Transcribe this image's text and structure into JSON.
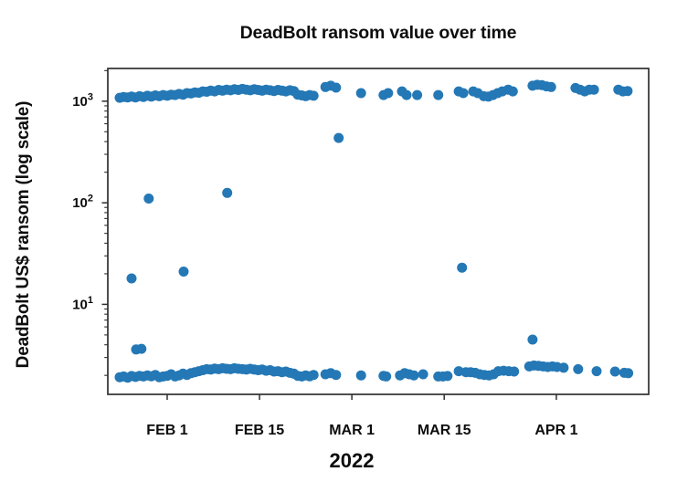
{
  "title": "DeadBolt ransom value over time",
  "y_axis_label": "DeadBolt US$ ransom (log scale)",
  "x_axis_label": "2022",
  "colors": {
    "marker": "#2478b5",
    "axis": "#2f2f2f",
    "text": "#0d0d0d",
    "background": "#ffffff"
  },
  "chart_data": {
    "type": "scatter",
    "title": "DeadBolt ransom value over time",
    "xlabel": "2022",
    "ylabel": "DeadBolt US$ ransom (log scale)",
    "x_unit": "day of year 2022 (Jan 1 = 1)",
    "y_unit": "US$ (log scale)",
    "xlim_days": [
      23,
      105
    ],
    "ylim": [
      1.3,
      2100
    ],
    "y_scale": "log10",
    "grid": false,
    "legend": "none",
    "marker_size_px": 11,
    "x_ticks": [
      {
        "day": 32,
        "label": "FEB 1"
      },
      {
        "day": 46,
        "label": "FEB 15"
      },
      {
        "day": 60,
        "label": "MAR 1"
      },
      {
        "day": 74,
        "label": "MAR 15"
      },
      {
        "day": 91,
        "label": "APR 1"
      }
    ],
    "y_ticks": [
      {
        "value": 1000,
        "base": "10",
        "exp": "3"
      },
      {
        "value": 100,
        "base": "10",
        "exp": "2"
      },
      {
        "value": 10,
        "base": "10",
        "exp": "1"
      }
    ],
    "points": [
      [
        24.8,
        1080
      ],
      [
        25.4,
        1100
      ],
      [
        26.0,
        1090
      ],
      [
        26.6,
        1110
      ],
      [
        27.2,
        1090
      ],
      [
        27.8,
        1120
      ],
      [
        28.4,
        1100
      ],
      [
        29.0,
        1130
      ],
      [
        29.6,
        1110
      ],
      [
        30.2,
        1140
      ],
      [
        30.8,
        1120
      ],
      [
        31.4,
        1150
      ],
      [
        32.0,
        1130
      ],
      [
        32.6,
        1160
      ],
      [
        33.2,
        1150
      ],
      [
        33.8,
        1180
      ],
      [
        34.4,
        1160
      ],
      [
        35.0,
        1200
      ],
      [
        35.6,
        1190
      ],
      [
        36.2,
        1220
      ],
      [
        36.8,
        1210
      ],
      [
        37.4,
        1250
      ],
      [
        38.0,
        1240
      ],
      [
        38.6,
        1270
      ],
      [
        39.2,
        1250
      ],
      [
        39.8,
        1290
      ],
      [
        40.4,
        1270
      ],
      [
        41.0,
        1300
      ],
      [
        41.6,
        1280
      ],
      [
        42.2,
        1310
      ],
      [
        42.8,
        1290
      ],
      [
        43.4,
        1320
      ],
      [
        44.0,
        1300
      ],
      [
        44.6,
        1280
      ],
      [
        45.2,
        1310
      ],
      [
        45.8,
        1290
      ],
      [
        46.4,
        1270
      ],
      [
        47.0,
        1300
      ],
      [
        47.6,
        1280
      ],
      [
        48.2,
        1260
      ],
      [
        48.8,
        1290
      ],
      [
        49.4,
        1270
      ],
      [
        50.0,
        1250
      ],
      [
        50.6,
        1280
      ],
      [
        51.2,
        1260
      ],
      [
        51.8,
        1160
      ],
      [
        52.4,
        1140
      ],
      [
        53.0,
        1120
      ],
      [
        53.6,
        1150
      ],
      [
        54.2,
        1130
      ],
      [
        56.0,
        1380
      ],
      [
        56.8,
        1420
      ],
      [
        57.6,
        1360
      ],
      [
        61.4,
        1200
      ],
      [
        64.8,
        1150
      ],
      [
        65.5,
        1200
      ],
      [
        67.6,
        1250
      ],
      [
        68.3,
        1150
      ],
      [
        69.9,
        1150
      ],
      [
        73.1,
        1150
      ],
      [
        76.2,
        1250
      ],
      [
        76.9,
        1200
      ],
      [
        78.4,
        1250
      ],
      [
        79.1,
        1200
      ],
      [
        80.0,
        1120
      ],
      [
        80.7,
        1110
      ],
      [
        81.4,
        1150
      ],
      [
        82.1,
        1200
      ],
      [
        82.8,
        1250
      ],
      [
        83.7,
        1300
      ],
      [
        84.4,
        1250
      ],
      [
        87.4,
        1420
      ],
      [
        88.1,
        1450
      ],
      [
        88.8,
        1440
      ],
      [
        89.5,
        1400
      ],
      [
        90.2,
        1380
      ],
      [
        93.9,
        1350
      ],
      [
        94.6,
        1300
      ],
      [
        95.3,
        1250
      ],
      [
        96.0,
        1300
      ],
      [
        96.7,
        1300
      ],
      [
        100.4,
        1300
      ],
      [
        101.1,
        1250
      ],
      [
        101.8,
        1260
      ],
      [
        24.8,
        1.92
      ],
      [
        25.4,
        1.95
      ],
      [
        26.0,
        1.9
      ],
      [
        26.6,
        1.97
      ],
      [
        27.2,
        1.93
      ],
      [
        27.8,
        1.98
      ],
      [
        28.4,
        1.95
      ],
      [
        29.0,
        2.0
      ],
      [
        29.6,
        1.96
      ],
      [
        30.2,
        2.02
      ],
      [
        30.8,
        1.92
      ],
      [
        31.4,
        1.95
      ],
      [
        32.0,
        1.98
      ],
      [
        32.6,
        2.05
      ],
      [
        33.2,
        1.95
      ],
      [
        33.8,
        2.0
      ],
      [
        34.4,
        2.08
      ],
      [
        35.0,
        2.02
      ],
      [
        35.6,
        2.1
      ],
      [
        36.2,
        2.15
      ],
      [
        36.8,
        2.2
      ],
      [
        37.4,
        2.25
      ],
      [
        38.0,
        2.3
      ],
      [
        38.6,
        2.28
      ],
      [
        39.2,
        2.33
      ],
      [
        39.8,
        2.3
      ],
      [
        40.4,
        2.35
      ],
      [
        41.0,
        2.32
      ],
      [
        41.6,
        2.3
      ],
      [
        42.2,
        2.35
      ],
      [
        42.8,
        2.32
      ],
      [
        43.4,
        2.3
      ],
      [
        44.0,
        2.28
      ],
      [
        44.6,
        2.32
      ],
      [
        45.2,
        2.28
      ],
      [
        45.8,
        2.25
      ],
      [
        46.4,
        2.28
      ],
      [
        47.0,
        2.22
      ],
      [
        47.6,
        2.25
      ],
      [
        48.2,
        2.18
      ],
      [
        48.8,
        2.2
      ],
      [
        49.4,
        2.15
      ],
      [
        50.0,
        2.18
      ],
      [
        50.6,
        2.12
      ],
      [
        51.2,
        2.08
      ],
      [
        51.8,
        1.98
      ],
      [
        52.4,
        1.95
      ],
      [
        53.0,
        2.0
      ],
      [
        53.6,
        1.96
      ],
      [
        54.2,
        2.02
      ],
      [
        56.0,
        2.05
      ],
      [
        56.8,
        2.1
      ],
      [
        57.6,
        2.02
      ],
      [
        61.4,
        2.0
      ],
      [
        64.8,
        1.98
      ],
      [
        65.2,
        1.95
      ],
      [
        67.3,
        2.0
      ],
      [
        68.0,
        2.1
      ],
      [
        68.7,
        2.05
      ],
      [
        69.4,
        2.0
      ],
      [
        70.8,
        2.05
      ],
      [
        73.1,
        1.95
      ],
      [
        73.8,
        1.95
      ],
      [
        74.5,
        1.97
      ],
      [
        76.2,
        2.2
      ],
      [
        77.3,
        2.15
      ],
      [
        78.0,
        2.15
      ],
      [
        78.7,
        2.12
      ],
      [
        79.4,
        2.05
      ],
      [
        80.1,
        2.02
      ],
      [
        80.8,
        2.0
      ],
      [
        81.5,
        2.05
      ],
      [
        82.2,
        2.2
      ],
      [
        83.0,
        2.22
      ],
      [
        83.8,
        2.2
      ],
      [
        84.6,
        2.18
      ],
      [
        86.9,
        2.45
      ],
      [
        87.6,
        2.5
      ],
      [
        88.3,
        2.48
      ],
      [
        89.0,
        2.45
      ],
      [
        89.7,
        2.42
      ],
      [
        90.4,
        2.45
      ],
      [
        91.1,
        2.42
      ],
      [
        92.1,
        2.38
      ],
      [
        94.3,
        2.3
      ],
      [
        97.1,
        2.2
      ],
      [
        99.9,
        2.18
      ],
      [
        101.3,
        2.12
      ],
      [
        101.9,
        2.1
      ],
      [
        26.6,
        18
      ],
      [
        27.3,
        3.6
      ],
      [
        28.1,
        3.65
      ],
      [
        29.2,
        110
      ],
      [
        34.5,
        21
      ],
      [
        41.1,
        125
      ],
      [
        58.0,
        435
      ],
      [
        76.7,
        23
      ],
      [
        87.4,
        4.5
      ]
    ]
  }
}
